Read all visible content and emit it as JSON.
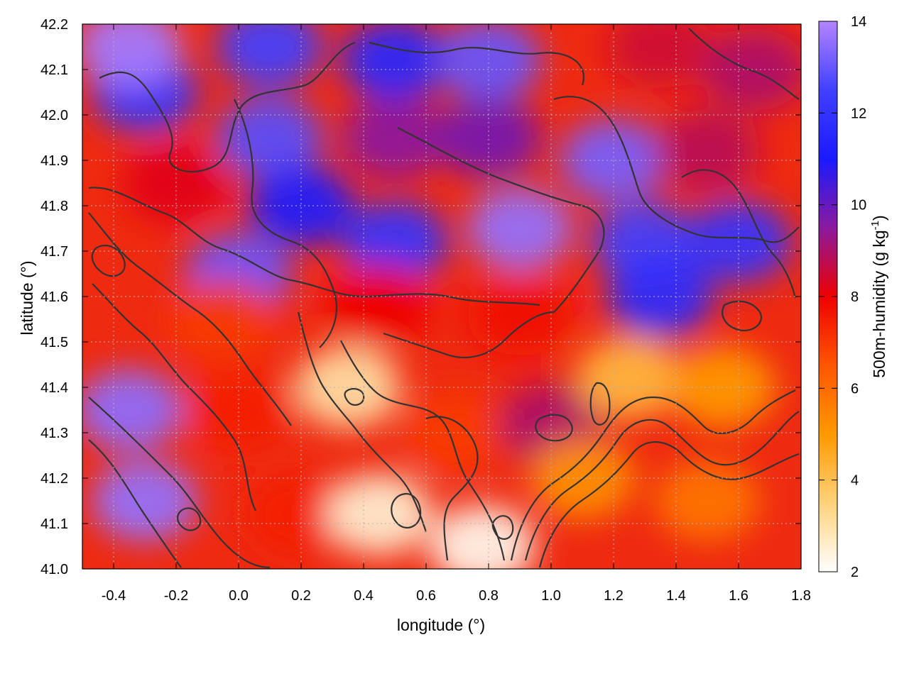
{
  "chart_data": {
    "type": "heatmap",
    "title": "",
    "xlabel": "longitude (°)",
    "ylabel": "latitude (°)",
    "xlim": [
      -0.5,
      1.8
    ],
    "ylim": [
      41.0,
      42.2
    ],
    "x_ticks": [
      "-0.4",
      "-0.2",
      "0.0",
      "0.2",
      "0.4",
      "0.6",
      "0.8",
      "1.0",
      "1.2",
      "1.4",
      "1.6",
      "1.8"
    ],
    "x_tick_values": [
      -0.4,
      -0.2,
      0.0,
      0.2,
      0.4,
      0.6,
      0.8,
      1.0,
      1.2,
      1.4,
      1.6,
      1.8
    ],
    "y_ticks": [
      "41.0",
      "41.1",
      "41.2",
      "41.3",
      "41.4",
      "41.5",
      "41.6",
      "41.7",
      "41.8",
      "41.9",
      "42.0",
      "42.1",
      "42.2"
    ],
    "y_tick_values": [
      41.0,
      41.1,
      41.2,
      41.3,
      41.4,
      41.5,
      41.6,
      41.7,
      41.8,
      41.9,
      42.0,
      42.1,
      42.2
    ],
    "grid": true,
    "colorbar": {
      "label": "500m-humidity (g kg",
      "label_sup": "-1",
      "label_close": ")",
      "range": [
        2,
        14
      ],
      "ticks": [
        "2",
        "4",
        "6",
        "8",
        "10",
        "12",
        "14"
      ],
      "tick_values": [
        2,
        4,
        6,
        8,
        10,
        12,
        14
      ],
      "palette": [
        "#ffffff",
        "#ffd27a",
        "#ff9900",
        "#ff5500",
        "#ee0000",
        "#8b1a9e",
        "#1a1aff",
        "#4040ff",
        "#b384ff"
      ]
    },
    "fields": [
      {
        "lon": -0.3,
        "lat": 42.05,
        "value": 12.2
      },
      {
        "lon": -0.35,
        "lat": 42.15,
        "value": 13.8
      },
      {
        "lon": 0.1,
        "lat": 42.15,
        "value": 12.5
      },
      {
        "lon": 0.5,
        "lat": 42.12,
        "value": 11.5
      },
      {
        "lon": 0.8,
        "lat": 42.12,
        "value": 13.0
      },
      {
        "lon": 1.35,
        "lat": 42.15,
        "value": 8.5
      },
      {
        "lon": 1.65,
        "lat": 42.1,
        "value": 9.0
      },
      {
        "lon": 0.1,
        "lat": 41.95,
        "value": 12.8
      },
      {
        "lon": 0.5,
        "lat": 41.95,
        "value": 9.5
      },
      {
        "lon": 0.8,
        "lat": 41.95,
        "value": 9.8
      },
      {
        "lon": 1.2,
        "lat": 41.9,
        "value": 13.2
      },
      {
        "lon": 1.5,
        "lat": 41.92,
        "value": 8.8
      },
      {
        "lon": -0.2,
        "lat": 41.85,
        "value": 8.2
      },
      {
        "lon": 0.2,
        "lat": 41.8,
        "value": 11.2
      },
      {
        "lon": 0.5,
        "lat": 41.72,
        "value": 12.0
      },
      {
        "lon": 0.9,
        "lat": 41.75,
        "value": 13.6
      },
      {
        "lon": 1.3,
        "lat": 41.72,
        "value": 12.5
      },
      {
        "lon": 1.6,
        "lat": 41.72,
        "value": 12.0
      },
      {
        "lon": 0.0,
        "lat": 41.65,
        "value": 13.0
      },
      {
        "lon": -0.05,
        "lat": 41.55,
        "value": 7.0
      },
      {
        "lon": 0.45,
        "lat": 41.58,
        "value": 8.0
      },
      {
        "lon": 0.9,
        "lat": 41.56,
        "value": 7.8
      },
      {
        "lon": 1.35,
        "lat": 41.6,
        "value": 11.8
      },
      {
        "lon": -0.35,
        "lat": 41.35,
        "value": 13.5
      },
      {
        "lon": -0.3,
        "lat": 41.15,
        "value": 13.6
      },
      {
        "lon": 0.0,
        "lat": 41.35,
        "value": 7.5
      },
      {
        "lon": 0.35,
        "lat": 41.4,
        "value": 3.0
      },
      {
        "lon": 0.7,
        "lat": 41.3,
        "value": 7.0
      },
      {
        "lon": 1.0,
        "lat": 41.32,
        "value": 9.0
      },
      {
        "lon": 1.25,
        "lat": 41.42,
        "value": 4.2
      },
      {
        "lon": 1.55,
        "lat": 41.4,
        "value": 5.0
      },
      {
        "lon": 0.2,
        "lat": 41.12,
        "value": 7.5
      },
      {
        "lon": 0.45,
        "lat": 41.12,
        "value": 2.5
      },
      {
        "lon": 0.78,
        "lat": 41.05,
        "value": 2.2
      },
      {
        "lon": 1.1,
        "lat": 41.2,
        "value": 5.2
      },
      {
        "lon": 1.5,
        "lat": 41.15,
        "value": 5.8
      }
    ]
  },
  "colors": {
    "background": "#ffffff",
    "contour": "#333333",
    "grid": "#b4b4b4"
  }
}
